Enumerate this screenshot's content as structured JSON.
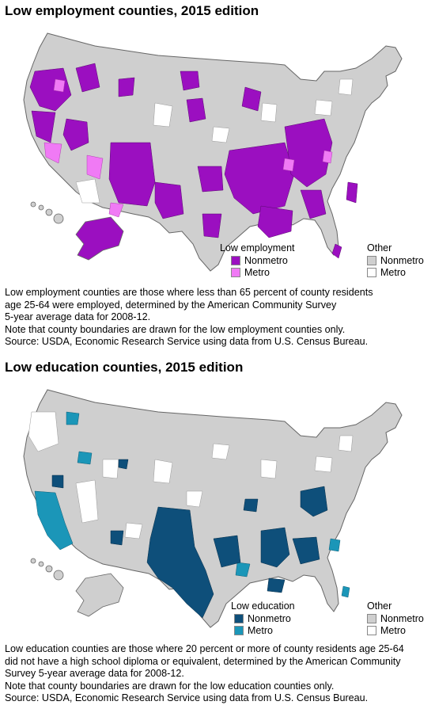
{
  "colors": {
    "emp_nonmetro": "#9B0FC0",
    "emp_metro": "#F07AF5",
    "edu_nonmetro": "#0E4F7A",
    "edu_metro": "#1B96B8",
    "other_nonmetro": "#CFCFCF",
    "other_metro": "#FFFFFF",
    "border": "#666666"
  },
  "maps": [
    {
      "title": "Low employment counties, 2015 edition",
      "legend": {
        "category_title": "Low employment",
        "category_items": [
          "Nonmetro",
          "Metro"
        ],
        "other_title": "Other",
        "other_items": [
          "Nonmetro",
          "Metro"
        ]
      },
      "note_lines": [
        "Low employment counties are those where less than 65 percent of county residents",
        "age 25-64 were employed, determined by the American Community Survey",
        "5-year average data for 2008-12.",
        "Note that county boundaries are drawn for the low employment counties only.",
        "Source: USDA, Economic Research Service using data from U.S. Census Bureau."
      ]
    },
    {
      "title": "Low education counties, 2015 edition",
      "legend": {
        "category_title": "Low education",
        "category_items": [
          "Nonmetro",
          "Metro"
        ],
        "other_title": "Other",
        "other_items": [
          "Nonmetro",
          "Metro"
        ]
      },
      "note_lines": [
        "Low education counties are those where 20 percent or more of county residents age 25-64",
        "did not have a high school diploma or equivalent, determined by the American Community",
        "Survey 5-year average data for 2008-12.",
        "Note that county boundaries are drawn for the low education counties only.",
        "Source: USDA, Economic Research Service using data from U.S. Census Bureau."
      ]
    }
  ]
}
